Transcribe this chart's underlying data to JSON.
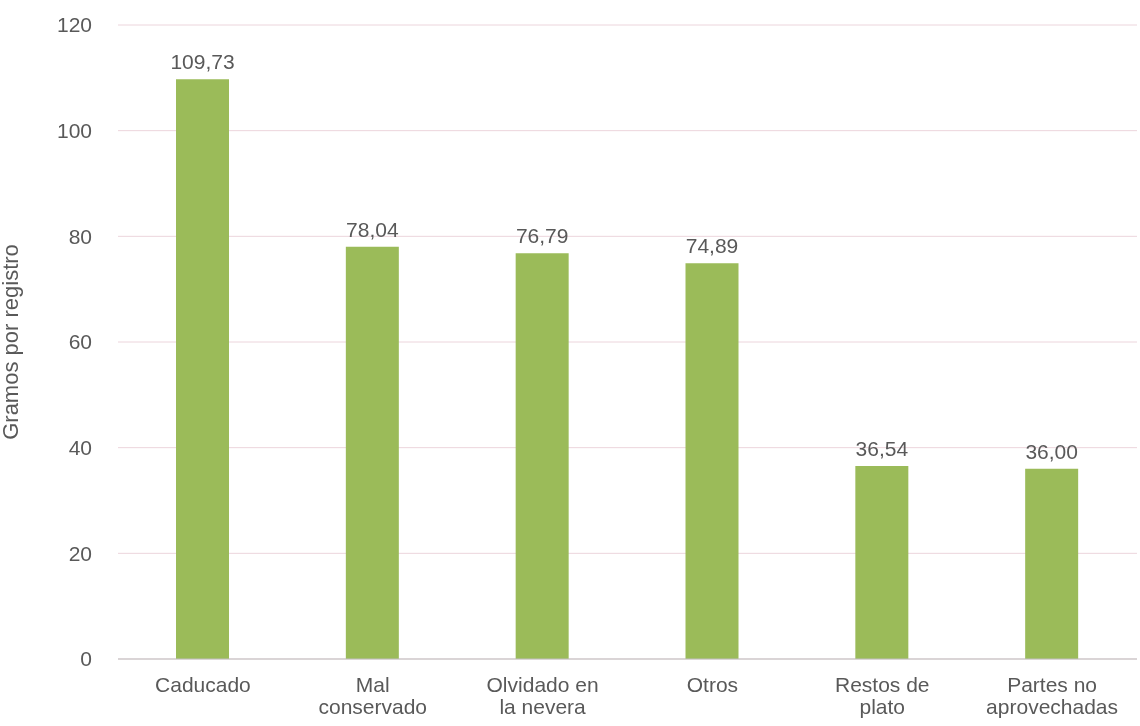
{
  "chart_data": {
    "type": "bar",
    "ylabel": "Gramos por registro",
    "categories": [
      "Caducado",
      "Mal conservado",
      "Olvidado en la nevera",
      "Otros",
      "Restos de plato",
      "Partes no aprovechadas"
    ],
    "values": [
      109.73,
      78.04,
      76.79,
      74.89,
      36.54,
      36.0
    ],
    "value_labels": [
      "109,73",
      "78,04",
      "76,79",
      "74,89",
      "36,54",
      "36,00"
    ],
    "color": "#9bbb59",
    "ylim": [
      0,
      120
    ],
    "yticks": [
      0,
      20,
      40,
      60,
      80,
      100,
      120
    ],
    "grid": "y"
  }
}
